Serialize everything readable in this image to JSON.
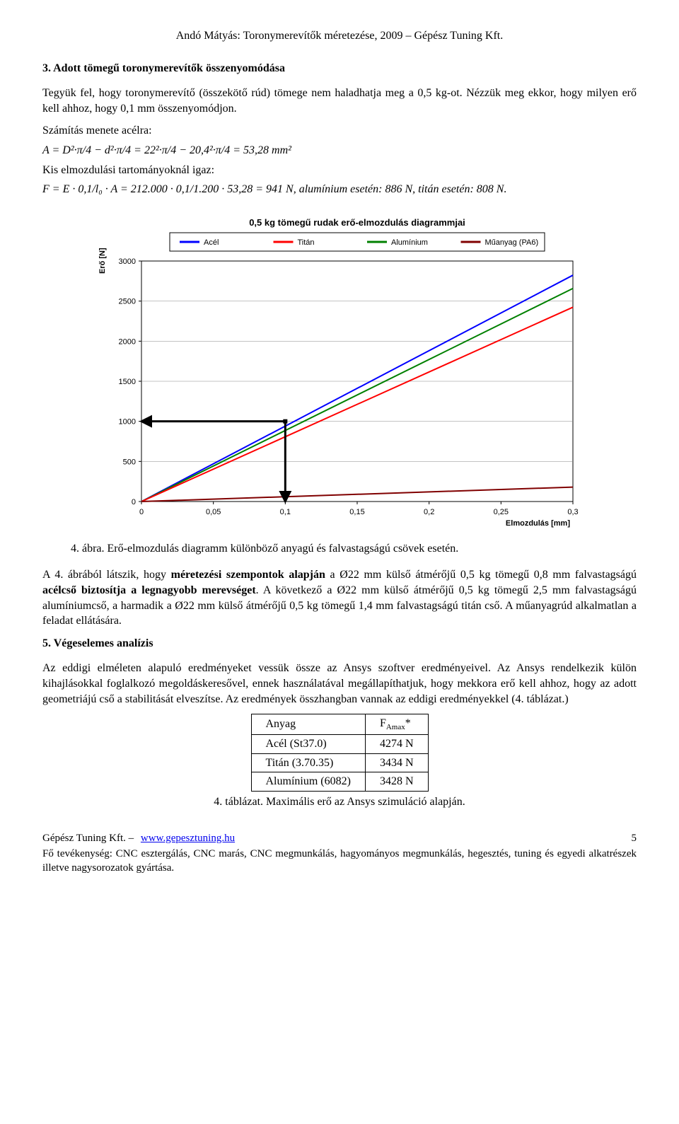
{
  "header": "Andó Mátyás: Toronymerevítők méretezése, 2009 – Gépész Tuning Kft.",
  "section3": {
    "title": "3. Adott tömegű toronymerevítők összenyomódása",
    "p1": "Tegyük fel, hogy toronymerevítő (összekötő rúd) tömege nem haladhatja meg a 0,5 kg-ot. Nézzük meg ekkor, hogy milyen erő kell ahhoz, hogy 0,1 mm összenyomódjon.",
    "calc_line": "Számítás menete acélra:",
    "formula_A": "A = D²·π/4 − d²·π/4 = 22²·π/4 − 20,4²·π/4 = 53,28 mm²",
    "kis_line": "Kis elmozdulási tartományoknál igaz:",
    "formula_F": "F = E · 0,1/l₀ · A = 212.000 · 0,1/1.200 · 53,28 = 941 N, alumínium esetén: 886 N, titán esetén: 808 N."
  },
  "chart": {
    "title": "0,5 kg tömegű rudak erő-elmozdulás diagrammjai",
    "title_fontsize": 13,
    "ylabel": "Erő [N]",
    "xlabel": "Elmozdulás [mm]",
    "label_fontsize": 11,
    "xlim": [
      0,
      0.3
    ],
    "ylim": [
      0,
      3000
    ],
    "xtick_step": 0.05,
    "ytick_step": 500,
    "xticks": [
      "0",
      "0,05",
      "0,1",
      "0,15",
      "0,2",
      "0,25",
      "0,3"
    ],
    "yticks": [
      "0",
      "500",
      "1000",
      "1500",
      "2000",
      "2500",
      "3000"
    ],
    "background_color": "#ffffff",
    "grid_color": "#000000",
    "legend_items": [
      {
        "label": "Acél",
        "color": "#0000ff"
      },
      {
        "label": "Titán",
        "color": "#ff0000"
      },
      {
        "label": "Alumínium",
        "color": "#008000"
      },
      {
        "label": "Műanyag (PA6)",
        "color": "#800000"
      }
    ],
    "series": {
      "acel": {
        "color": "#0000ff",
        "slope": 9410,
        "line_width": 2
      },
      "titan": {
        "color": "#ff0000",
        "slope": 8080,
        "line_width": 2
      },
      "aluminium": {
        "color": "#008000",
        "slope": 8860,
        "line_width": 2
      },
      "muanyag": {
        "color": "#800000",
        "slope": 600,
        "line_width": 2
      }
    },
    "annotation_arrow": {
      "x": 0.1,
      "y_from": 1000,
      "y_to": 0,
      "x_from": 0.1,
      "x_to": 0.0,
      "color": "#000000",
      "line_width": 3
    }
  },
  "fig4_caption": "4. ábra. Erő-elmozdulás diagramm különböző anyagú és falvastagságú csövek esetén.",
  "para_a4": "A 4. ábrából látszik, hogy méretezési szempontok alapján a Ø22 mm külső átmérőjű 0,5 kg tömegű 0,8 mm falvastagságú acélcső biztosítja a legnagyobb merevséget. A következő a Ø22 mm külső átmérőjű 0,5 kg tömegű 2,5 mm falvastagságú alumíniumcső, a harmadik a Ø22 mm külső átmérőjű 0,5 kg tömegű 1,4 mm falvastagságú titán cső. A műanyagrúd alkalmatlan a feladat ellátására.",
  "section5": {
    "title": "5. Végeselemes analízis",
    "p1": "Az eddigi elméleten alapuló eredményeket vessük össze az Ansys szoftver eredményeivel. Az Ansys rendelkezik külön kihajlásokkal foglalkozó megoldáskeresővel, ennek használatával megállapíthatjuk, hogy mekkora erő kell ahhoz, hogy az adott geometriájú cső a stabilitását elveszítse. Az eredmények összhangban vannak az eddigi eredményekkel (4. táblázat.)"
  },
  "table4": {
    "columns": [
      "Anyag",
      "F_Amax*"
    ],
    "rows": [
      [
        "Acél (St37.0)",
        "4274 N"
      ],
      [
        "Titán (3.70.35)",
        "3434 N"
      ],
      [
        "Alumínium (6082)",
        "3428 N"
      ]
    ],
    "caption": "4. táblázat. Maximális erő az Ansys szimuláció alapján."
  },
  "footer": {
    "company": "Gépész Tuning Kft. –",
    "link_text": "www.gepesztuning.hu",
    "page": "5",
    "activities": "Fő tevékenység: CNC esztergálás, CNC marás, CNC megmunkálás, hagyományos megmunkálás, hegesztés, tuning és egyedi alkatrészek illetve nagysorozatok gyártása."
  }
}
